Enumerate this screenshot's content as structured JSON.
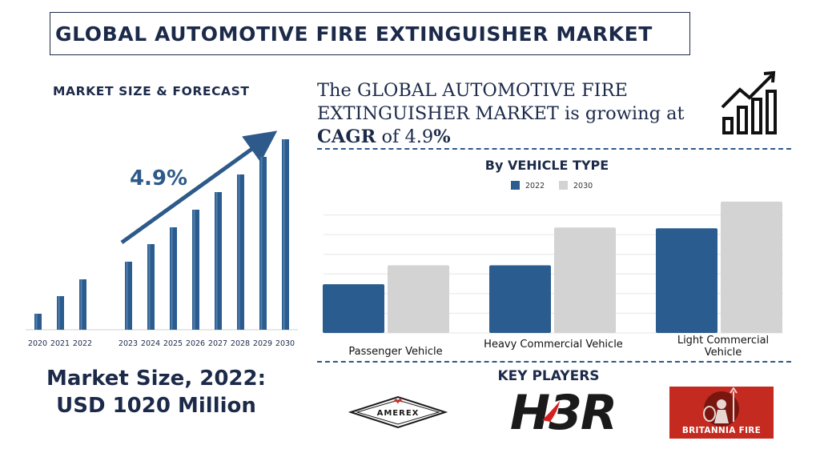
{
  "header": {
    "title": "GLOBAL AUTOMOTIVE FIRE EXTINGUISHER MARKET"
  },
  "left_panel": {
    "subtitle": "MARKET SIZE & FORECAST",
    "market_size_line1": "Market Size, 2022:",
    "market_size_line2": "USD 1020 Million"
  },
  "cagr_statement": {
    "line1": "The GLOBAL AUTOMOTIVE FIRE",
    "line2": "EXTINGUISHER MARKET is growing at",
    "cagr_label": "CAGR",
    "of_text": "of",
    "value": "4.9",
    "percent": "%"
  },
  "right_panel": {
    "title": "By VEHICLE TYPE"
  },
  "key_players": {
    "title": "KEY PLAYERS",
    "logos": [
      {
        "text": "AMEREX",
        "icon": "amerex-logo"
      },
      {
        "text": "H3R",
        "icon": "h3r-logo"
      },
      {
        "text": "BRITANNIA FIRE",
        "icon": "britannia-fire-logo"
      }
    ]
  },
  "colors": {
    "navy": "#1c2a4a",
    "bar_blue": "#2b5c8f",
    "bar_grey": "#d3d3d3",
    "arrow": "#2d5a8a",
    "britannia_red": "#c42a1f"
  },
  "chart_data": [
    {
      "type": "bar",
      "title": "MARKET SIZE & FORECAST",
      "categories": [
        "2020",
        "2021",
        "2022",
        "2023",
        "2024",
        "2025",
        "2026",
        "2027",
        "2028",
        "2029",
        "2030"
      ],
      "values": [
        1,
        2,
        3,
        4,
        5,
        6,
        7,
        8,
        9,
        10,
        11
      ],
      "values_note": "bars show a steadily increasing trend; no numeric labels are printed",
      "annotation": "4.9%",
      "grid": false,
      "legend": "none"
    },
    {
      "type": "bar",
      "title": "By VEHICLE TYPE",
      "categories": [
        "Passenger Vehicle",
        "Heavy Commercial Vehicle",
        "Light Commercial Vehicle"
      ],
      "series": [
        {
          "name": "2022",
          "color": "#2b5c8f",
          "values": [
            62,
            86,
            133
          ]
        },
        {
          "name": "2030",
          "color": "#d3d3d3",
          "values": [
            86,
            134,
            167
          ]
        }
      ],
      "ylim": [
        0,
        175
      ],
      "grid": true,
      "legend": "top-center"
    }
  ]
}
